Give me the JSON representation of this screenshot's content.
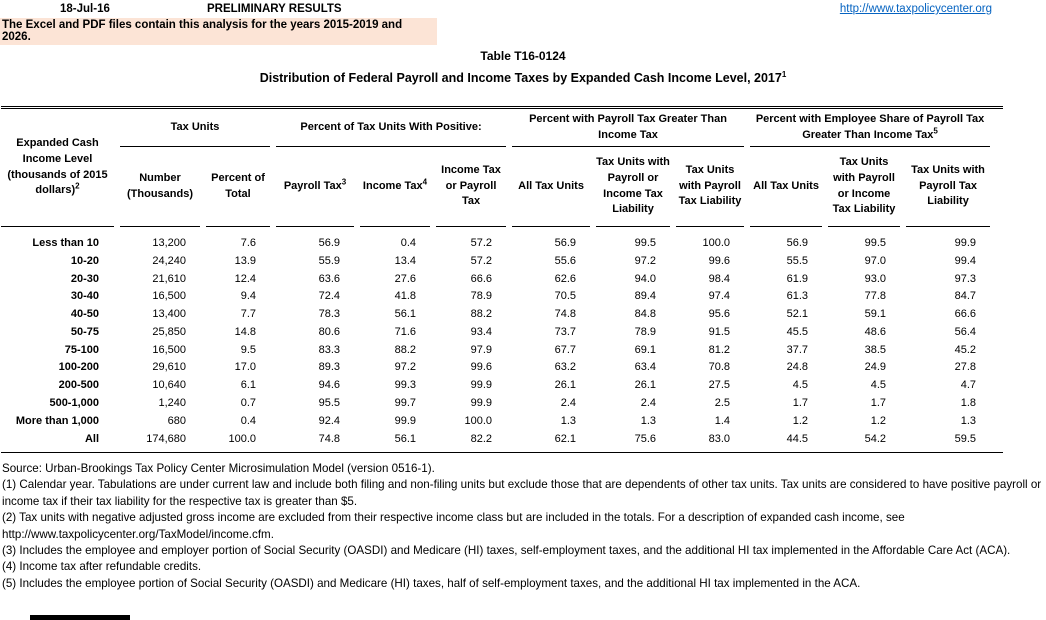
{
  "colors": {
    "notice_bg": "#FCE4D6",
    "link_blue": "#0563C1"
  },
  "header": {
    "date": "18-Jul-16",
    "preliminary": "PRELIMINARY RESULTS",
    "url": "http://www.taxpolicycenter.org",
    "notice": "The Excel and PDF files contain this analysis for the years 2015-2019 and 2026."
  },
  "title": {
    "line1": "Table T16-0124",
    "line2": "Distribution of Federal Payroll and Income Taxes by Expanded Cash Income Level, 2017",
    "line2_sup": "1"
  },
  "table": {
    "row_header": {
      "label": "Expanded Cash Income Level (thousands of 2015 dollars)",
      "sup": "2"
    },
    "groups": [
      {
        "label": "Tax Units",
        "sup": ""
      },
      {
        "label": "Percent of Tax Units With Positive:",
        "sup": ""
      },
      {
        "label": "Percent with Payroll Tax Greater Than Income Tax",
        "sup": ""
      },
      {
        "label": "Percent with Employee Share of Payroll Tax Greater Than Income Tax",
        "sup": "5"
      }
    ],
    "columns": [
      {
        "label": "Number (Thousands)",
        "sup": ""
      },
      {
        "label": "Percent of Total",
        "sup": ""
      },
      {
        "label": "Payroll Tax",
        "sup": "3"
      },
      {
        "label": "Income Tax",
        "sup": "4"
      },
      {
        "label": "Income Tax or Payroll Tax",
        "sup": ""
      },
      {
        "label": "All Tax Units",
        "sup": ""
      },
      {
        "label": "Tax Units with Payroll or Income Tax Liability",
        "sup": ""
      },
      {
        "label": "Tax Units with Payroll Tax Liability",
        "sup": ""
      },
      {
        "label": "All Tax Units",
        "sup": ""
      },
      {
        "label": "Tax Units with Payroll or Income Tax Liability",
        "sup": ""
      },
      {
        "label": "Tax Units with Payroll Tax Liability",
        "sup": ""
      }
    ],
    "rows": [
      {
        "label": "Less than 10",
        "values": [
          "13,200",
          "7.6",
          "56.9",
          "0.4",
          "57.2",
          "56.9",
          "99.5",
          "100.0",
          "56.9",
          "99.5",
          "99.9"
        ]
      },
      {
        "label": "10-20",
        "values": [
          "24,240",
          "13.9",
          "55.9",
          "13.4",
          "57.2",
          "55.6",
          "97.2",
          "99.6",
          "55.5",
          "97.0",
          "99.4"
        ]
      },
      {
        "label": "20-30",
        "values": [
          "21,610",
          "12.4",
          "63.6",
          "27.6",
          "66.6",
          "62.6",
          "94.0",
          "98.4",
          "61.9",
          "93.0",
          "97.3"
        ]
      },
      {
        "label": "30-40",
        "values": [
          "16,500",
          "9.4",
          "72.4",
          "41.8",
          "78.9",
          "70.5",
          "89.4",
          "97.4",
          "61.3",
          "77.8",
          "84.7"
        ]
      },
      {
        "label": "40-50",
        "values": [
          "13,400",
          "7.7",
          "78.3",
          "56.1",
          "88.2",
          "74.8",
          "84.8",
          "95.6",
          "52.1",
          "59.1",
          "66.6"
        ]
      },
      {
        "label": "50-75",
        "values": [
          "25,850",
          "14.8",
          "80.6",
          "71.6",
          "93.4",
          "73.7",
          "78.9",
          "91.5",
          "45.5",
          "48.6",
          "56.4"
        ]
      },
      {
        "label": "75-100",
        "values": [
          "16,500",
          "9.5",
          "83.3",
          "88.2",
          "97.9",
          "67.7",
          "69.1",
          "81.2",
          "37.7",
          "38.5",
          "45.2"
        ]
      },
      {
        "label": "100-200",
        "values": [
          "29,610",
          "17.0",
          "89.3",
          "97.2",
          "99.6",
          "63.2",
          "63.4",
          "70.8",
          "24.8",
          "24.9",
          "27.8"
        ]
      },
      {
        "label": "200-500",
        "values": [
          "10,640",
          "6.1",
          "94.6",
          "99.3",
          "99.9",
          "26.1",
          "26.1",
          "27.5",
          "4.5",
          "4.5",
          "4.7"
        ]
      },
      {
        "label": "500-1,000",
        "values": [
          "1,240",
          "0.7",
          "95.5",
          "99.7",
          "99.9",
          "2.4",
          "2.4",
          "2.5",
          "1.7",
          "1.7",
          "1.8"
        ]
      },
      {
        "label": "More than 1,000",
        "values": [
          "680",
          "0.4",
          "92.4",
          "99.9",
          "100.0",
          "1.3",
          "1.3",
          "1.4",
          "1.2",
          "1.2",
          "1.3"
        ]
      },
      {
        "label": "All",
        "values": [
          "174,680",
          "100.0",
          "74.8",
          "56.1",
          "82.2",
          "62.1",
          "75.6",
          "83.0",
          "44.5",
          "54.2",
          "59.5"
        ]
      }
    ]
  },
  "footnotes": [
    "Source: Urban-Brookings Tax Policy Center Microsimulation Model (version 0516-1).",
    "(1) Calendar year. Tabulations are under current law and include both filing and non-filing units but exclude those that are dependents of other tax units.  Tax units are considered to have positive payroll or income tax if their tax liability for the respective tax is greater than $5.",
    "(2) Tax units with negative adjusted gross income are excluded from their respective income class but are included in the totals. For a description of expanded cash income, see http://www.taxpolicycenter.org/TaxModel/income.cfm.",
    "(3) Includes the employee and employer portion of Social Security (OASDI) and Medicare (HI) taxes, self-employment taxes, and the additional HI tax implemented in the Affordable Care Act (ACA).",
    "(4) Income tax after refundable credits.",
    "(5) Includes the employee portion of Social Security (OASDI) and Medicare (HI) taxes, half of self-employment taxes, and the additional HI tax implemented in the ACA."
  ]
}
